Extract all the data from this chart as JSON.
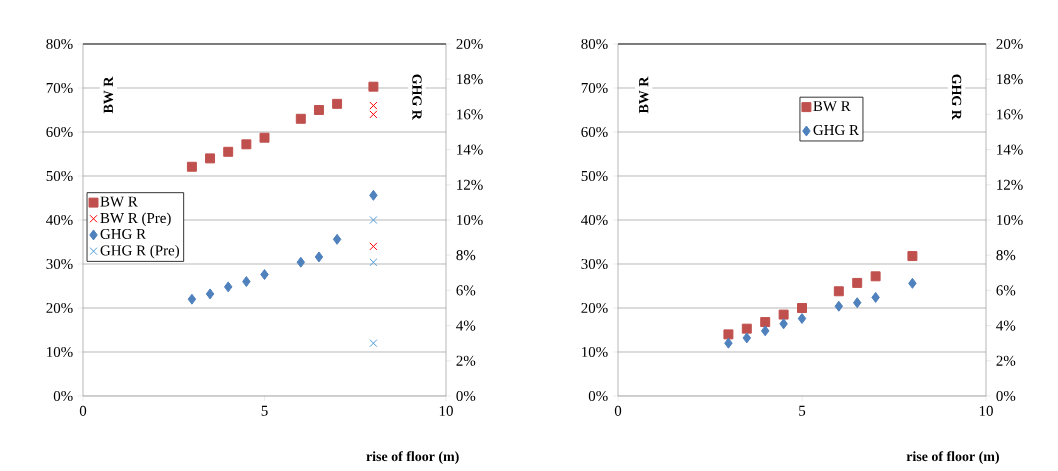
{
  "chart_data": [
    {
      "type": "scatter",
      "xlabel": "rise of floor (m)",
      "ylabel": "BW R",
      "y2label": "GHG R",
      "xlim": [
        0,
        10
      ],
      "xticks": [
        0,
        5,
        10
      ],
      "ylim": [
        0,
        80
      ],
      "yticks": [
        {
          "value": 0,
          "label": "0%"
        },
        {
          "value": 10,
          "label": "10%"
        },
        {
          "value": 20,
          "label": "20%"
        },
        {
          "value": 30,
          "label": "30%"
        },
        {
          "value": 40,
          "label": "40%"
        },
        {
          "value": 50,
          "label": "50%"
        },
        {
          "value": 60,
          "label": "60%"
        },
        {
          "value": 70,
          "label": "70%"
        },
        {
          "value": 80,
          "label": "80%"
        }
      ],
      "y2lim": [
        0,
        20
      ],
      "y2ticks": [
        {
          "value": 0,
          "label": "0%"
        },
        {
          "value": 2,
          "label": "2%"
        },
        {
          "value": 4,
          "label": "4%"
        },
        {
          "value": 6,
          "label": "6%"
        },
        {
          "value": 8,
          "label": "8%"
        },
        {
          "value": 10,
          "label": "10%"
        },
        {
          "value": 12,
          "label": "12%"
        },
        {
          "value": 14,
          "label": "14%"
        },
        {
          "value": 16,
          "label": "16%"
        },
        {
          "value": 18,
          "label": "18%"
        },
        {
          "value": 20,
          "label": "20%"
        }
      ],
      "grid": "y",
      "legend": "left",
      "series": [
        {
          "name": "BW R",
          "color": "#c0504d",
          "marker": "square",
          "x": [
            3,
            3.5,
            4,
            4.5,
            5,
            6,
            6.5,
            7,
            8
          ],
          "values": [
            52.1,
            54.0,
            55.5,
            57.2,
            58.7,
            63.0,
            65.0,
            66.4,
            70.3
          ]
        },
        {
          "name": "BW R (Pre)",
          "color": "#ff0000",
          "marker": "cross",
          "x": [
            8,
            8,
            8
          ],
          "values": [
            66,
            64,
            34
          ]
        },
        {
          "name": "GHG R",
          "color": "#4f81bd",
          "marker": "diamond",
          "axis": "y2",
          "x": [
            3,
            3.5,
            4,
            4.5,
            5,
            6,
            6.5,
            7,
            8
          ],
          "values": [
            5.5,
            5.8,
            6.2,
            6.5,
            6.9,
            7.6,
            7.9,
            8.9,
            11.4
          ]
        },
        {
          "name": "GHG R (Pre)",
          "color": "#4a9bd8",
          "marker": "cross",
          "axis": "y2",
          "x": [
            8,
            8,
            8
          ],
          "values": [
            10.0,
            7.6,
            3.0
          ]
        }
      ]
    },
    {
      "type": "scatter",
      "xlabel": "rise of floor (m)",
      "ylabel": "BW R",
      "y2label": "GHG R",
      "xlim": [
        0,
        10
      ],
      "xticks": [
        0,
        5,
        10
      ],
      "ylim": [
        0,
        80
      ],
      "yticks": [
        {
          "value": 0,
          "label": "0%"
        },
        {
          "value": 10,
          "label": "10%"
        },
        {
          "value": 20,
          "label": "20%"
        },
        {
          "value": 30,
          "label": "30%"
        },
        {
          "value": 40,
          "label": "40%"
        },
        {
          "value": 50,
          "label": "50%"
        },
        {
          "value": 60,
          "label": "60%"
        },
        {
          "value": 70,
          "label": "70%"
        },
        {
          "value": 80,
          "label": "80%"
        }
      ],
      "y2lim": [
        0,
        20
      ],
      "y2ticks": [
        {
          "value": 0,
          "label": "0%"
        },
        {
          "value": 2,
          "label": "2%"
        },
        {
          "value": 4,
          "label": "4%"
        },
        {
          "value": 6,
          "label": "6%"
        },
        {
          "value": 8,
          "label": "8%"
        },
        {
          "value": 10,
          "label": "10%"
        },
        {
          "value": 12,
          "label": "12%"
        },
        {
          "value": 14,
          "label": "14%"
        },
        {
          "value": 16,
          "label": "16%"
        },
        {
          "value": 18,
          "label": "18%"
        },
        {
          "value": 20,
          "label": "20%"
        }
      ],
      "grid": "y",
      "legend": "top",
      "series": [
        {
          "name": "BW R",
          "color": "#c0504d",
          "marker": "square",
          "x": [
            3,
            3.5,
            4,
            4.5,
            5,
            6,
            6.5,
            7,
            8
          ],
          "values": [
            14.0,
            15.3,
            16.8,
            18.5,
            20.0,
            23.8,
            25.7,
            27.2,
            31.8
          ]
        },
        {
          "name": "GHG R",
          "color": "#4f81bd",
          "marker": "diamond",
          "axis": "y2",
          "x": [
            3,
            3.5,
            4,
            4.5,
            5,
            6,
            6.5,
            7,
            8
          ],
          "values": [
            3.0,
            3.3,
            3.7,
            4.1,
            4.4,
            5.1,
            5.3,
            5.6,
            6.4
          ]
        }
      ]
    }
  ]
}
